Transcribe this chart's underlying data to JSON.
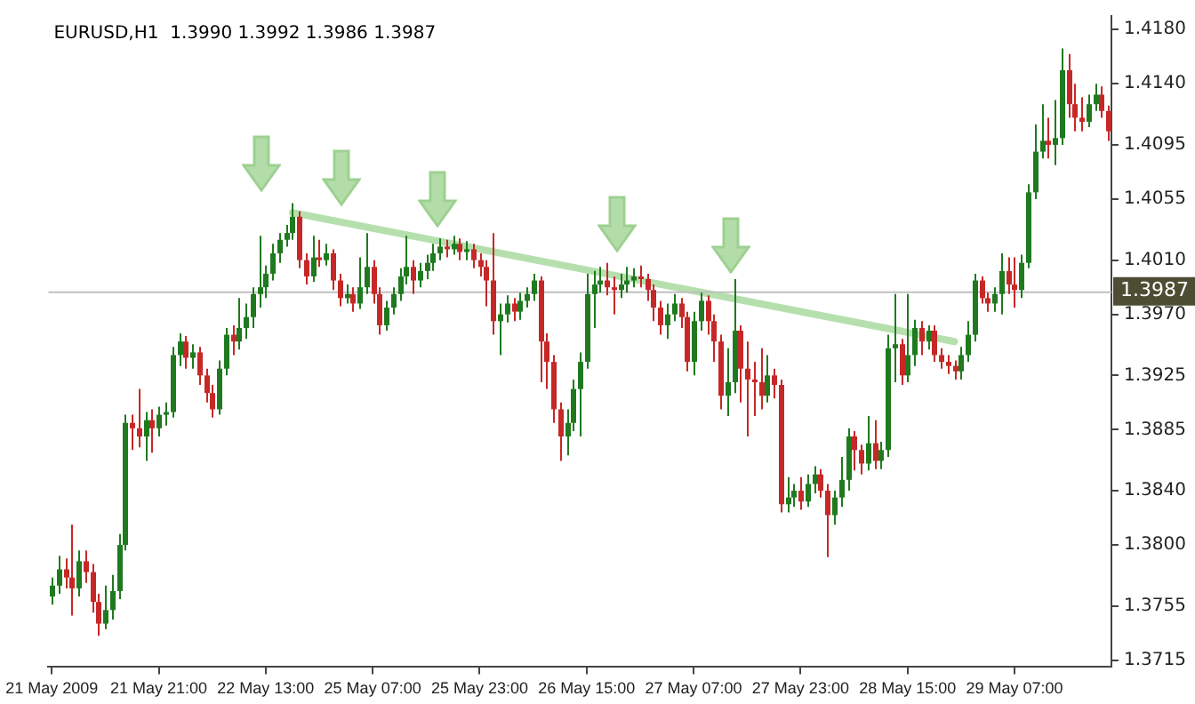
{
  "chart_data": {
    "type": "candlestick",
    "title": "EURUSD,H1  1.3990 1.3992 1.3986 1.3987",
    "categories": [
      "21 May 2009",
      null,
      null,
      null,
      null,
      null,
      null,
      null,
      null,
      null,
      null,
      null,
      null,
      null,
      null,
      null,
      "21 May 21:00",
      null,
      null,
      null,
      null,
      null,
      null,
      null,
      null,
      null,
      null,
      null,
      null,
      null,
      null,
      null,
      "22 May 13:00",
      null,
      null,
      null,
      null,
      null,
      null,
      null,
      null,
      null,
      null,
      null,
      null,
      null,
      null,
      null,
      "25 May 07:00",
      null,
      null,
      null,
      null,
      null,
      null,
      null,
      null,
      null,
      null,
      null,
      null,
      null,
      null,
      null,
      "25 May 23:00",
      null,
      null,
      null,
      null,
      null,
      null,
      null,
      null,
      null,
      null,
      null,
      null,
      null,
      null,
      null,
      "26 May 15:00",
      null,
      null,
      null,
      null,
      null,
      null,
      null,
      null,
      null,
      null,
      null,
      null,
      null,
      null,
      null,
      "27 May 07:00",
      null,
      null,
      null,
      null,
      null,
      null,
      null,
      null,
      null,
      null,
      null,
      null,
      null,
      null,
      null,
      "27 May 23:00",
      null,
      null,
      null,
      null,
      null,
      null,
      null,
      null,
      null,
      null,
      null,
      null,
      null,
      null,
      null,
      "28 May 15:00",
      null,
      null,
      null,
      null,
      null,
      null,
      null,
      null,
      null,
      null,
      null,
      null,
      null,
      null,
      null,
      "29 May 07:00",
      null,
      null,
      null,
      null,
      null,
      null,
      null,
      null,
      null,
      null,
      null,
      null,
      null,
      null
    ],
    "ylim": [
      1.371,
      1.419
    ],
    "yticks": [
      {
        "value": 1.418,
        "label": "1.4180"
      },
      {
        "value": 1.414,
        "label": "1.4140"
      },
      {
        "value": 1.4095,
        "label": "1.4095"
      },
      {
        "value": 1.4055,
        "label": "1.4055"
      },
      {
        "value": 1.401,
        "label": "1.4010"
      },
      {
        "value": 1.397,
        "label": "1.3970"
      },
      {
        "value": 1.3925,
        "label": "1.3925"
      },
      {
        "value": 1.3885,
        "label": "1.3885"
      },
      {
        "value": 1.384,
        "label": "1.3840"
      },
      {
        "value": 1.38,
        "label": "1.3800"
      },
      {
        "value": 1.3755,
        "label": "1.3755"
      },
      {
        "value": 1.3715,
        "label": "1.3715"
      }
    ],
    "ref_lines": [
      {
        "axis": "y",
        "value": 1.3987,
        "label": "1.3987",
        "color": "#c0c0c0"
      }
    ],
    "series": [
      {
        "ohlc": [
          [
            1.3762,
            1.3776,
            1.3756,
            1.377
          ],
          [
            1.377,
            1.3792,
            1.3764,
            1.3782
          ],
          [
            1.3782,
            1.379,
            1.3768,
            1.3776
          ],
          [
            1.3776,
            1.3815,
            1.3748,
            1.3768
          ],
          [
            1.3768,
            1.3796,
            1.3762,
            1.3788
          ],
          [
            1.3788,
            1.3796,
            1.3772,
            1.378
          ],
          [
            1.378,
            1.3786,
            1.375,
            1.3758
          ],
          [
            1.3758,
            1.3764,
            1.3733,
            1.3742
          ],
          [
            1.3742,
            1.377,
            1.3738,
            1.3752
          ],
          [
            1.3752,
            1.3778,
            1.3745,
            1.3766
          ],
          [
            1.3766,
            1.3808,
            1.376,
            1.38
          ],
          [
            1.38,
            1.3896,
            1.3796,
            1.389
          ],
          [
            1.389,
            1.3896,
            1.387,
            1.3886
          ],
          [
            1.3886,
            1.3915,
            1.3872,
            1.388
          ],
          [
            1.388,
            1.3898,
            1.3862,
            1.3892
          ],
          [
            1.3892,
            1.39,
            1.3868,
            1.3886
          ],
          [
            1.3886,
            1.3902,
            1.388,
            1.3896
          ],
          [
            1.3896,
            1.3905,
            1.3888,
            1.3898
          ],
          [
            1.3898,
            1.3946,
            1.3894,
            1.394
          ],
          [
            1.394,
            1.3956,
            1.3932,
            1.395
          ],
          [
            1.395,
            1.3954,
            1.393,
            1.3938
          ],
          [
            1.3938,
            1.3948,
            1.393,
            1.3942
          ],
          [
            1.3942,
            1.3946,
            1.3918,
            1.3925
          ],
          [
            1.3925,
            1.393,
            1.3905,
            1.3912
          ],
          [
            1.3912,
            1.3918,
            1.3894,
            1.39
          ],
          [
            1.39,
            1.3936,
            1.3896,
            1.393
          ],
          [
            1.393,
            1.396,
            1.3925,
            1.3955
          ],
          [
            1.3955,
            1.3962,
            1.394,
            1.395
          ],
          [
            1.395,
            1.3982,
            1.3944,
            1.396
          ],
          [
            1.396,
            1.3978,
            1.3952,
            1.3968
          ],
          [
            1.3968,
            1.399,
            1.396,
            1.3985
          ],
          [
            1.3985,
            1.4028,
            1.3975,
            1.399
          ],
          [
            1.399,
            1.4006,
            1.3982,
            1.4
          ],
          [
            1.4,
            1.4022,
            1.3995,
            1.4015
          ],
          [
            1.4015,
            1.403,
            1.4008,
            1.4025
          ],
          [
            1.4025,
            1.4036,
            1.402,
            1.403
          ],
          [
            1.403,
            1.4052,
            1.4025,
            1.4042
          ],
          [
            1.4042,
            1.4046,
            1.4004,
            1.401
          ],
          [
            1.401,
            1.4015,
            1.3992,
            1.3998
          ],
          [
            1.3998,
            1.4028,
            1.3994,
            1.4012
          ],
          [
            1.4012,
            1.4025,
            1.4005,
            1.401
          ],
          [
            1.401,
            1.4022,
            1.4006,
            1.4015
          ],
          [
            1.4015,
            1.4018,
            1.3988,
            1.3995
          ],
          [
            1.3995,
            1.4,
            1.3976,
            1.3982
          ],
          [
            1.3982,
            1.3992,
            1.3978,
            1.3985
          ],
          [
            1.3985,
            1.399,
            1.3972,
            1.3978
          ],
          [
            1.3978,
            1.4012,
            1.3974,
            1.399
          ],
          [
            1.399,
            1.403,
            1.3985,
            1.4005
          ],
          [
            1.4005,
            1.401,
            1.3978,
            1.3985
          ],
          [
            1.3985,
            1.399,
            1.3955,
            1.3962
          ],
          [
            1.3962,
            1.398,
            1.3958,
            1.3975
          ],
          [
            1.3975,
            1.399,
            1.397,
            1.3985
          ],
          [
            1.3985,
            1.4004,
            1.398,
            1.3998
          ],
          [
            1.3998,
            1.4028,
            1.3992,
            1.4005
          ],
          [
            1.4005,
            1.401,
            1.3985,
            1.3995
          ],
          [
            1.3995,
            1.4008,
            1.399,
            1.4002
          ],
          [
            1.4002,
            1.4014,
            1.3996,
            1.4008
          ],
          [
            1.4008,
            1.4022,
            1.4002,
            1.4015
          ],
          [
            1.4015,
            1.4026,
            1.401,
            1.402
          ],
          [
            1.402,
            1.4025,
            1.4012,
            1.4018
          ],
          [
            1.4018,
            1.4028,
            1.4014,
            1.4022
          ],
          [
            1.4022,
            1.4026,
            1.401,
            1.4016
          ],
          [
            1.4016,
            1.4024,
            1.401,
            1.4018
          ],
          [
            1.4018,
            1.4022,
            1.4004,
            1.401
          ],
          [
            1.401,
            1.4015,
            1.3998,
            1.4005
          ],
          [
            1.4005,
            1.401,
            1.3976,
            1.3995
          ],
          [
            1.3995,
            1.403,
            1.3955,
            1.3965
          ],
          [
            1.3965,
            1.3978,
            1.394,
            1.397
          ],
          [
            1.397,
            1.3984,
            1.3964,
            1.3978
          ],
          [
            1.3978,
            1.3982,
            1.3965,
            1.3972
          ],
          [
            1.3972,
            1.3986,
            1.3966,
            1.398
          ],
          [
            1.398,
            1.399,
            1.3975,
            1.3985
          ],
          [
            1.3985,
            1.4,
            1.398,
            1.3995
          ],
          [
            1.3995,
            1.3998,
            1.392,
            1.395
          ],
          [
            1.395,
            1.3956,
            1.3915,
            1.3935
          ],
          [
            1.3935,
            1.394,
            1.389,
            1.39
          ],
          [
            1.39,
            1.3905,
            1.3862,
            1.388
          ],
          [
            1.388,
            1.39,
            1.3866,
            1.389
          ],
          [
            1.389,
            1.3922,
            1.3884,
            1.3915
          ],
          [
            1.3915,
            1.3942,
            1.388,
            1.3935
          ],
          [
            1.3935,
            1.4,
            1.393,
            1.3985
          ],
          [
            1.3985,
            1.4002,
            1.396,
            1.3992
          ],
          [
            1.3992,
            1.4005,
            1.3986,
            1.3995
          ],
          [
            1.3995,
            1.4008,
            1.3984,
            1.399
          ],
          [
            1.399,
            1.3998,
            1.397,
            1.3988
          ],
          [
            1.3988,
            1.4,
            1.3982,
            1.3992
          ],
          [
            1.3992,
            1.4005,
            1.3986,
            1.3995
          ],
          [
            1.3995,
            1.4004,
            1.399,
            1.3998
          ],
          [
            1.3998,
            1.4006,
            1.399,
            1.3996
          ],
          [
            1.3996,
            1.4,
            1.398,
            1.3988
          ],
          [
            1.3988,
            1.3992,
            1.3965,
            1.3975
          ],
          [
            1.3975,
            1.398,
            1.3955,
            1.3962
          ],
          [
            1.3962,
            1.3978,
            1.3952,
            1.397
          ],
          [
            1.397,
            1.3985,
            1.3965,
            1.3978
          ],
          [
            1.3978,
            1.3982,
            1.396,
            1.3968
          ],
          [
            1.3968,
            1.3972,
            1.3928,
            1.3935
          ],
          [
            1.3935,
            1.3972,
            1.3925,
            1.3965
          ],
          [
            1.3965,
            1.3986,
            1.3958,
            1.398
          ],
          [
            1.398,
            1.3984,
            1.3955,
            1.3965
          ],
          [
            1.3965,
            1.397,
            1.3935,
            1.395
          ],
          [
            1.395,
            1.3955,
            1.39,
            1.391
          ],
          [
            1.391,
            1.3945,
            1.3895,
            1.392
          ],
          [
            1.392,
            1.3996,
            1.3912,
            1.3958
          ],
          [
            1.3958,
            1.3962,
            1.3905,
            1.393
          ],
          [
            1.393,
            1.395,
            1.388,
            1.3922
          ],
          [
            1.3922,
            1.3935,
            1.3895,
            1.392
          ],
          [
            1.392,
            1.3945,
            1.39,
            1.391
          ],
          [
            1.391,
            1.394,
            1.3905,
            1.3925
          ],
          [
            1.3925,
            1.393,
            1.3908,
            1.3918
          ],
          [
            1.3918,
            1.3922,
            1.3824,
            1.383
          ],
          [
            1.383,
            1.385,
            1.3824,
            1.3835
          ],
          [
            1.3835,
            1.3845,
            1.3828,
            1.384
          ],
          [
            1.384,
            1.385,
            1.3826,
            1.3832
          ],
          [
            1.3832,
            1.3852,
            1.3828,
            1.3845
          ],
          [
            1.3845,
            1.3858,
            1.3838,
            1.3852
          ],
          [
            1.3852,
            1.3856,
            1.3835,
            1.384
          ],
          [
            1.384,
            1.3845,
            1.3791,
            1.3822
          ],
          [
            1.3822,
            1.384,
            1.3815,
            1.3835
          ],
          [
            1.3835,
            1.3865,
            1.3828,
            1.3848
          ],
          [
            1.3848,
            1.3886,
            1.384,
            1.388
          ],
          [
            1.388,
            1.3884,
            1.3855,
            1.387
          ],
          [
            1.387,
            1.3874,
            1.3852,
            1.386
          ],
          [
            1.386,
            1.3895,
            1.3855,
            1.3875
          ],
          [
            1.3875,
            1.3892,
            1.3856,
            1.3862
          ],
          [
            1.3862,
            1.3876,
            1.3856,
            1.387
          ],
          [
            1.387,
            1.3955,
            1.3865,
            1.3945
          ],
          [
            1.3945,
            1.3985,
            1.392,
            1.3948
          ],
          [
            1.3948,
            1.3952,
            1.3918,
            1.3925
          ],
          [
            1.3925,
            1.3985,
            1.392,
            1.394
          ],
          [
            1.394,
            1.3966,
            1.3932,
            1.396
          ],
          [
            1.396,
            1.3965,
            1.394,
            1.395
          ],
          [
            1.395,
            1.3962,
            1.3944,
            1.3958
          ],
          [
            1.3958,
            1.3962,
            1.3935,
            1.394
          ],
          [
            1.394,
            1.3945,
            1.393,
            1.3935
          ],
          [
            1.3935,
            1.394,
            1.3926,
            1.3932
          ],
          [
            1.3932,
            1.3936,
            1.3922,
            1.3928
          ],
          [
            1.3928,
            1.3946,
            1.3922,
            1.394
          ],
          [
            1.394,
            1.3965,
            1.3935,
            1.3955
          ],
          [
            1.3955,
            1.4,
            1.395,
            1.3995
          ],
          [
            1.3995,
            1.3998,
            1.3978,
            1.3982
          ],
          [
            1.3982,
            1.3986,
            1.3972,
            1.3978
          ],
          [
            1.3978,
            1.399,
            1.3972,
            1.3985
          ],
          [
            1.3985,
            1.4015,
            1.397,
            1.4002
          ],
          [
            1.4002,
            1.4012,
            1.3985,
            1.3992
          ],
          [
            1.3992,
            1.4012,
            1.3975,
            1.3988
          ],
          [
            1.3988,
            1.4014,
            1.3982,
            1.4008
          ],
          [
            1.4008,
            1.4066,
            1.4004,
            1.406
          ],
          [
            1.406,
            1.411,
            1.4055,
            1.409
          ],
          [
            1.409,
            1.4125,
            1.4085,
            1.4098
          ],
          [
            1.4098,
            1.4115,
            1.4085,
            1.4095
          ],
          [
            1.4095,
            1.4128,
            1.408,
            1.41
          ],
          [
            1.41,
            1.4166,
            1.4095,
            1.415
          ],
          [
            1.415,
            1.4162,
            1.4115,
            1.4125
          ],
          [
            1.4125,
            1.414,
            1.4105,
            1.4115
          ],
          [
            1.4115,
            1.413,
            1.4105,
            1.4112
          ],
          [
            1.4112,
            1.4132,
            1.4108,
            1.4125
          ],
          [
            1.4125,
            1.414,
            1.412,
            1.4132
          ],
          [
            1.4132,
            1.4138,
            1.4115,
            1.412
          ],
          [
            1.412,
            1.4124,
            1.4098,
            1.4105
          ]
        ],
        "colors": [
          "#1f7a1f",
          "#1f7a1f",
          "#c62828",
          "#c62828",
          "#1f7a1f",
          "#c62828",
          "#c62828",
          "#c62828",
          "#1f7a1f",
          "#1f7a1f",
          "#1f7a1f",
          "#1f7a1f",
          "#c62828",
          "#c62828",
          "#1f7a1f",
          "#c62828",
          "#1f7a1f",
          "#1f7a1f",
          "#1f7a1f",
          "#1f7a1f",
          "#c62828",
          "#1f7a1f",
          "#c62828",
          "#c62828",
          "#c62828",
          "#1f7a1f",
          "#1f7a1f",
          "#c62828",
          "#1f7a1f",
          "#1f7a1f",
          "#1f7a1f",
          "#1f7a1f",
          "#1f7a1f",
          "#1f7a1f",
          "#1f7a1f",
          "#1f7a1f",
          "#1f7a1f",
          "#c62828",
          "#c62828",
          "#1f7a1f",
          "#c62828",
          "#1f7a1f",
          "#c62828",
          "#c62828",
          "#1f7a1f",
          "#c62828",
          "#1f7a1f",
          "#1f7a1f",
          "#c62828",
          "#c62828",
          "#1f7a1f",
          "#1f7a1f",
          "#1f7a1f",
          "#1f7a1f",
          "#c62828",
          "#1f7a1f",
          "#1f7a1f",
          "#1f7a1f",
          "#1f7a1f",
          "#c62828",
          "#1f7a1f",
          "#c62828",
          "#1f7a1f",
          "#c62828",
          "#c62828",
          "#c62828",
          "#c62828",
          "#1f7a1f",
          "#1f7a1f",
          "#c62828",
          "#1f7a1f",
          "#1f7a1f",
          "#1f7a1f",
          "#c62828",
          "#c62828",
          "#c62828",
          "#c62828",
          "#1f7a1f",
          "#1f7a1f",
          "#1f7a1f",
          "#1f7a1f",
          "#1f7a1f",
          "#1f7a1f",
          "#c62828",
          "#c62828",
          "#1f7a1f",
          "#1f7a1f",
          "#1f7a1f",
          "#c62828",
          "#c62828",
          "#c62828",
          "#c62828",
          "#1f7a1f",
          "#1f7a1f",
          "#c62828",
          "#c62828",
          "#1f7a1f",
          "#1f7a1f",
          "#c62828",
          "#c62828",
          "#c62828",
          "#1f7a1f",
          "#1f7a1f",
          "#c62828",
          "#c62828",
          "#c62828",
          "#c62828",
          "#1f7a1f",
          "#c62828",
          "#c62828",
          "#1f7a1f",
          "#1f7a1f",
          "#c62828",
          "#1f7a1f",
          "#1f7a1f",
          "#c62828",
          "#c62828",
          "#1f7a1f",
          "#1f7a1f",
          "#1f7a1f",
          "#c62828",
          "#c62828",
          "#1f7a1f",
          "#c62828",
          "#1f7a1f",
          "#1f7a1f",
          "#1f7a1f",
          "#c62828",
          "#1f7a1f",
          "#1f7a1f",
          "#c62828",
          "#1f7a1f",
          "#c62828",
          "#c62828",
          "#c62828",
          "#c62828",
          "#1f7a1f",
          "#1f7a1f",
          "#1f7a1f",
          "#c62828",
          "#c62828",
          "#1f7a1f",
          "#1f7a1f",
          "#c62828",
          "#c62828",
          "#1f7a1f",
          "#1f7a1f",
          "#1f7a1f",
          "#1f7a1f",
          "#c62828",
          "#1f7a1f",
          "#1f7a1f",
          "#c62828",
          "#c62828",
          "#c62828",
          "#1f7a1f",
          "#1f7a1f",
          "#c62828",
          "#c62828"
        ]
      },
      {
        "type": "line",
        "color": "#b5e0ad",
        "values": [
          null,
          null,
          null,
          null,
          null,
          null,
          null,
          null,
          null,
          null,
          null,
          null,
          null,
          null,
          null,
          null,
          null,
          null,
          null,
          null,
          null,
          null,
          null,
          null,
          null,
          null,
          null,
          null,
          null,
          null,
          null,
          null,
          null,
          null,
          null,
          null,
          1.4045,
          null,
          null,
          null,
          null,
          null,
          null,
          null,
          null,
          null,
          null,
          null,
          null,
          null,
          null,
          null,
          null,
          null,
          null,
          null,
          null,
          null,
          null,
          null,
          null,
          null,
          null,
          null,
          null,
          null,
          null,
          null,
          null,
          null,
          null,
          null,
          null,
          null,
          null,
          null,
          null,
          null,
          null,
          null,
          null,
          null,
          null,
          null,
          null,
          null,
          null,
          null,
          null,
          null,
          null,
          null,
          null,
          null,
          null,
          null,
          null,
          null,
          null,
          null,
          null,
          null,
          null,
          null,
          null,
          null,
          null,
          null,
          null,
          null,
          null,
          null,
          null,
          null,
          null,
          null,
          null,
          null,
          null,
          null,
          null,
          null,
          null,
          null,
          null,
          null,
          null,
          null,
          null,
          null,
          null,
          null,
          null,
          null,
          null,
          1.395,
          null,
          null,
          null,
          null,
          null,
          null,
          null,
          null,
          null,
          null,
          null,
          null,
          null,
          null,
          null,
          null,
          null,
          null,
          null,
          null,
          null,
          null,
          null
        ]
      }
    ]
  }
}
